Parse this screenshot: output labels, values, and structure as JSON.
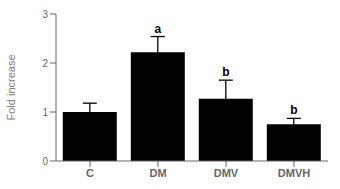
{
  "chart_data": {
    "type": "bar",
    "categories": [
      "C",
      "DM",
      "DMV",
      "DMVH"
    ],
    "values": [
      1.0,
      2.22,
      1.27,
      0.75
    ],
    "errors": [
      0.18,
      0.32,
      0.38,
      0.12
    ],
    "color": "#000000",
    "ylabel": "Fold increase",
    "ylim": [
      0,
      3
    ],
    "yticks": [
      0,
      1,
      2,
      3
    ],
    "grid": false,
    "annotations": [
      {
        "category": "DM",
        "text": "a"
      },
      {
        "category": "DMV",
        "text": "b"
      },
      {
        "category": "DMVH",
        "text": "b"
      }
    ]
  }
}
